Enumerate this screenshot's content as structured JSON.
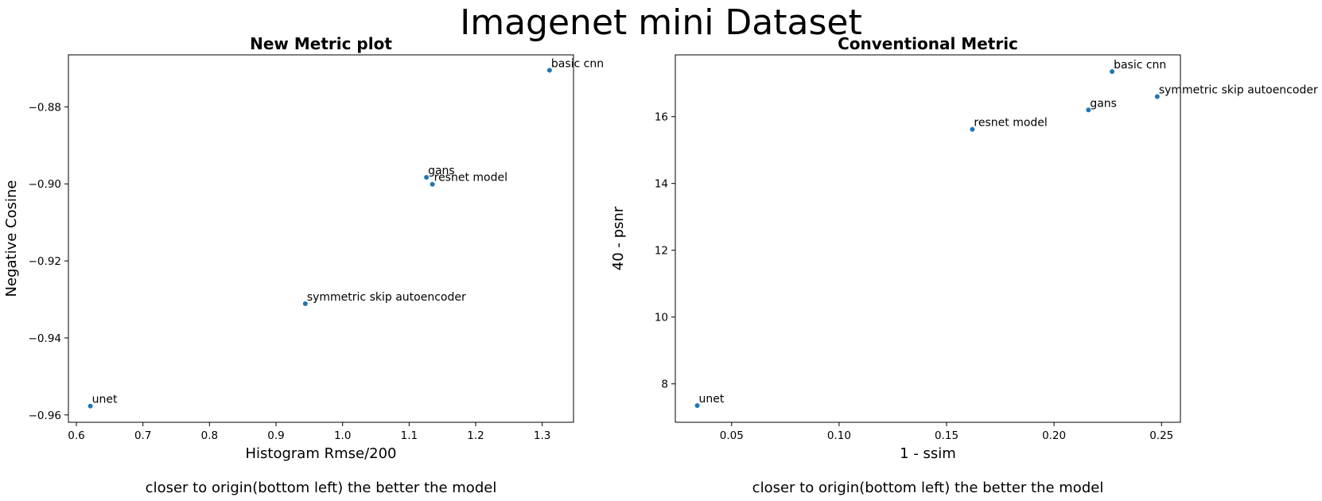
{
  "figure": {
    "suptitle": "Imagenet mini Dataset"
  },
  "chart_data": [
    {
      "type": "scatter",
      "title": "New Metric plot",
      "xlabel": "Histogram Rmse/200",
      "ylabel": "Negative Cosine",
      "caption": "closer to origin(bottom left) the better the model",
      "xlim": [
        0.588,
        1.347
      ],
      "ylim": [
        -0.9619,
        -0.8665
      ],
      "xticks": [
        0.6,
        0.7,
        0.8,
        0.9,
        1.0,
        1.1,
        1.2,
        1.3
      ],
      "xtick_labels": [
        "0.6",
        "0.7",
        "0.8",
        "0.9",
        "1.0",
        "1.1",
        "1.2",
        "1.3"
      ],
      "yticks": [
        -0.96,
        -0.94,
        -0.92,
        -0.9,
        -0.88
      ],
      "ytick_labels": [
        "−0.96",
        "−0.94",
        "−0.92",
        "−0.90",
        "−0.88"
      ],
      "grid": false,
      "marker_color": "#1f77b4",
      "points": [
        {
          "label": "basic cnn",
          "x": 1.311,
          "y": -0.8705
        },
        {
          "label": "gans",
          "x": 1.126,
          "y": -0.8983
        },
        {
          "label": "resnet model",
          "x": 1.135,
          "y": -0.9001
        },
        {
          "label": "symmetric skip autoencoder",
          "x": 0.944,
          "y": -0.9311
        },
        {
          "label": "unet",
          "x": 0.621,
          "y": -0.9577
        }
      ]
    },
    {
      "type": "scatter",
      "title": "Conventional Metric",
      "xlabel": "1 - ssim",
      "ylabel": "40 - psnr",
      "caption": "closer to origin(bottom left) the better the model",
      "xlim": [
        0.0238,
        0.2588
      ],
      "ylim": [
        6.85,
        17.85
      ],
      "xticks": [
        0.05,
        0.1,
        0.15,
        0.2,
        0.25
      ],
      "xtick_labels": [
        "0.05",
        "0.10",
        "0.15",
        "0.20",
        "0.25"
      ],
      "yticks": [
        8,
        10,
        12,
        14,
        16
      ],
      "ytick_labels": [
        "8",
        "10",
        "12",
        "14",
        "16"
      ],
      "grid": false,
      "marker_color": "#1f77b4",
      "points": [
        {
          "label": "basic cnn",
          "x": 0.227,
          "y": 17.35
        },
        {
          "label": "symmetric skip autoencoder",
          "x": 0.248,
          "y": 16.6
        },
        {
          "label": "gans",
          "x": 0.216,
          "y": 16.2
        },
        {
          "label": "resnet model",
          "x": 0.162,
          "y": 15.62
        },
        {
          "label": "unet",
          "x": 0.034,
          "y": 7.35
        }
      ]
    }
  ]
}
